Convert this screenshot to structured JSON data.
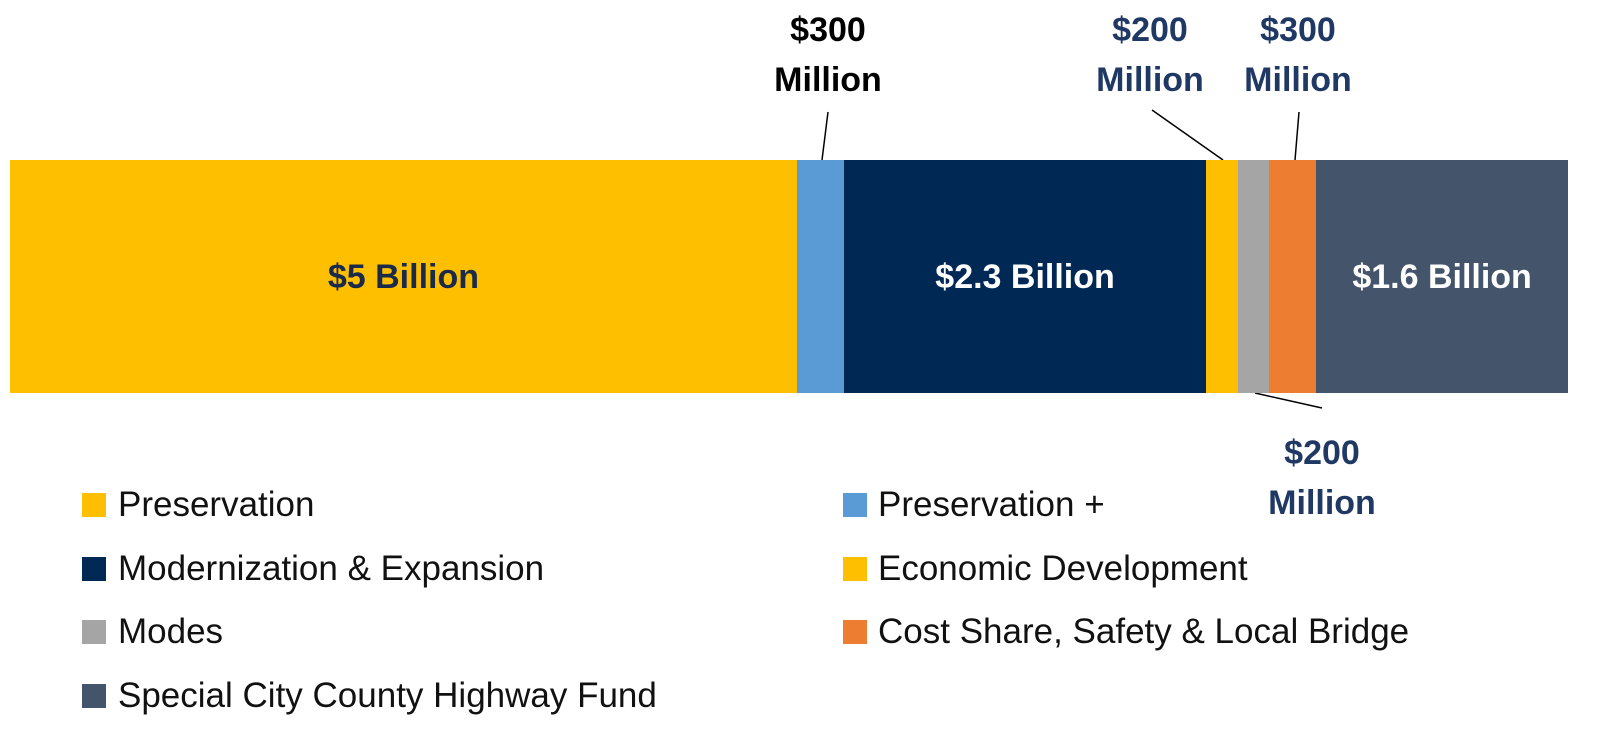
{
  "chart_data": {
    "type": "stacked-bar",
    "orientation": "horizontal",
    "series": [
      {
        "name": "Preservation",
        "color": "#FDBF00",
        "values": [
          5000
        ],
        "value_labels": [
          "$5 Billion"
        ]
      },
      {
        "name": "Preservation +",
        "color": "#5B9BD5",
        "values": [
          300
        ],
        "value_labels": [
          "$300 Million"
        ]
      },
      {
        "name": "Modernization & Expansion",
        "color": "#002855",
        "values": [
          2300
        ],
        "value_labels": [
          "$2.3 Billion"
        ]
      },
      {
        "name": "Economic Development",
        "color": "#FDBF00",
        "values": [
          200
        ],
        "value_labels": [
          "$200 Million"
        ]
      },
      {
        "name": "Modes",
        "color": "#A5A5A5",
        "values": [
          200
        ],
        "value_labels": [
          "$200 Million"
        ]
      },
      {
        "name": "Cost Share, Safety & Local Bridge",
        "color": "#ED7D31",
        "values": [
          300
        ],
        "value_labels": [
          "$300 Million"
        ]
      },
      {
        "name": "Special City County Highway Fund",
        "color": "#44546A",
        "values": [
          1600
        ],
        "value_labels": [
          "$1.6 Billion"
        ]
      }
    ]
  }
}
